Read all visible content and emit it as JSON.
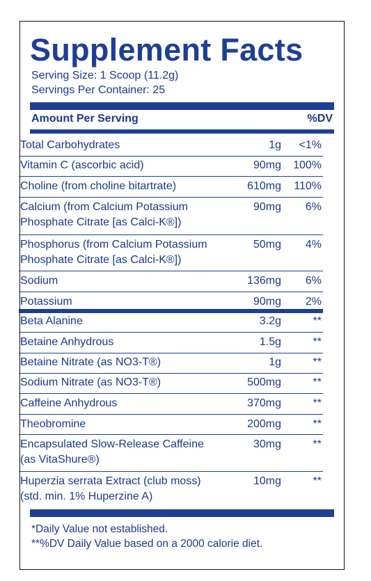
{
  "title": "Supplement Facts",
  "serving_size": "Serving Size: 1 Scoop (11.2g)",
  "servings_per_container": "Servings Per Container: 25",
  "header": {
    "amount": "Amount Per Serving",
    "dv": "%DV"
  },
  "rows": [
    {
      "name": [
        "Total Carbohydrates"
      ],
      "amount": "1g",
      "dv": "<1%"
    },
    {
      "name": [
        "Vitamin C (ascorbic acid)"
      ],
      "amount": "90mg",
      "dv": "100%"
    },
    {
      "name": [
        "Choline (from choline bitartrate)"
      ],
      "amount": "610mg",
      "dv": "110%"
    },
    {
      "name": [
        "Calcium (from Calcium Potassium",
        "Phosphate Citrate [as Calci-K®])"
      ],
      "amount": "90mg",
      "dv": "6%"
    },
    {
      "name": [
        "Phosphorus (from Calcium Potassium",
        "Phosphate Citrate [as Calci-K®])"
      ],
      "amount": "50mg",
      "dv": "4%"
    },
    {
      "name": [
        "Sodium"
      ],
      "amount": "136mg",
      "dv": "6%"
    },
    {
      "name": [
        "Potassium"
      ],
      "amount": "90mg",
      "dv": "2%"
    },
    {
      "name": [
        "Beta Alanine"
      ],
      "amount": "3.2g",
      "dv": "**"
    },
    {
      "name": [
        "Betaine Anhydrous"
      ],
      "amount": "1.5g",
      "dv": "**"
    },
    {
      "name": [
        "Betaine Nitrate (as NO3-T®)"
      ],
      "amount": "1g",
      "dv": "**"
    },
    {
      "name": [
        "Sodium Nitrate (as NO3-T®)"
      ],
      "amount": "500mg",
      "dv": "**"
    },
    {
      "name": [
        "Caffeine Anhydrous"
      ],
      "amount": "370mg",
      "dv": "**"
    },
    {
      "name": [
        "Theobromine"
      ],
      "amount": "200mg",
      "dv": "**"
    },
    {
      "name": [
        "Encapsulated Slow-Release Caffeine",
        "(as VitaShure®)"
      ],
      "amount": "30mg",
      "dv": "**"
    },
    {
      "name": [
        "Huperzia serrata Extract (club moss)",
        "(std. min. 1% Huperzine A)"
      ],
      "amount": "10mg",
      "dv": "**"
    }
  ],
  "footnotes": [
    "*Daily Value not established.",
    "**%DV Daily Value based on a 2000 calorie diet."
  ],
  "colors": {
    "text": "#1e3f94",
    "border": "#111111",
    "background": "#ffffff"
  }
}
